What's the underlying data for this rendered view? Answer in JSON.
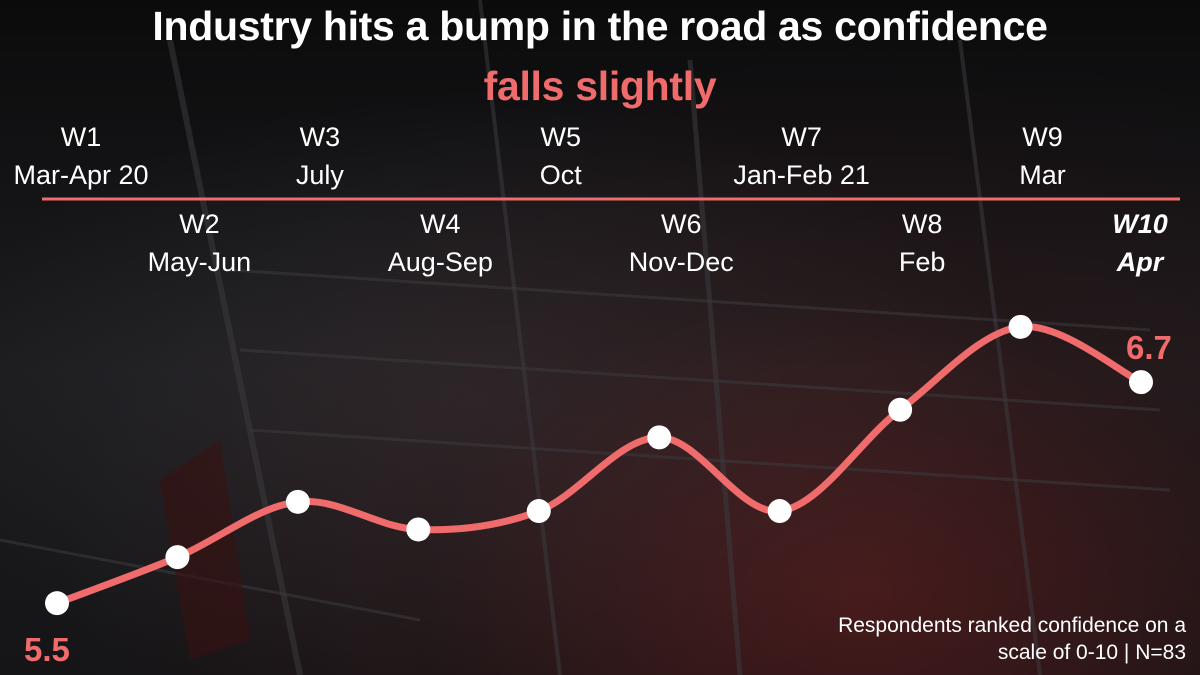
{
  "colors": {
    "accent": "#f06b6b",
    "text": "#ffffff",
    "marker": "#ffffff"
  },
  "title": {
    "line1": "Industry hits a bump in the road as confidence",
    "line2": "falls slightly"
  },
  "footnote": {
    "line1": "Respondents ranked confidence on a",
    "line2": "scale of 0-10 | N=83"
  },
  "chart_data": {
    "type": "line",
    "title": "Industry hits a bump in the road as confidence falls slightly",
    "categories": [
      "W1",
      "W2",
      "W3",
      "W4",
      "W5",
      "W6",
      "W7",
      "W8",
      "W9",
      "W10"
    ],
    "periods": [
      "Mar-Apr 20",
      "May-Jun",
      "July",
      "Aug-Sep",
      "Oct",
      "Nov-Dec",
      "Jan-Feb 21",
      "Feb",
      "Mar",
      "Apr"
    ],
    "values": [
      5.5,
      5.75,
      6.05,
      5.9,
      6.0,
      6.4,
      6.0,
      6.55,
      7.0,
      6.7
    ],
    "ylim": [
      5.3,
      7.2
    ],
    "grid": false,
    "legend": "none",
    "data_labels": {
      "first": "5.5",
      "last": "6.7"
    }
  }
}
